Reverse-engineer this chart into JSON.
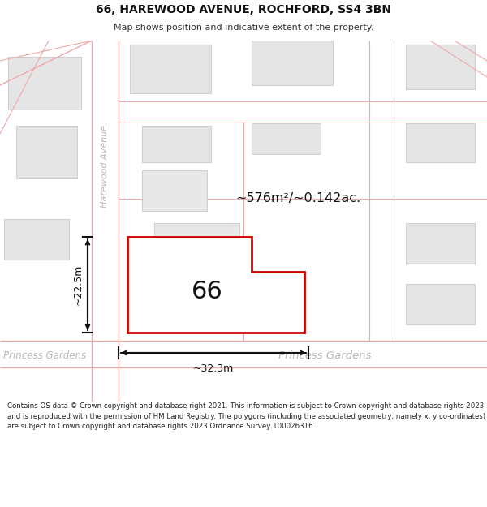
{
  "title_line1": "66, HAREWOOD AVENUE, ROCHFORD, SS4 3BN",
  "title_line2": "Map shows position and indicative extent of the property.",
  "footer_text": "Contains OS data © Crown copyright and database right 2021. This information is subject to Crown copyright and database rights 2023 and is reproduced with the permission of HM Land Registry. The polygons (including the associated geometry, namely x, y co-ordinates) are subject to Crown copyright and database rights 2023 Ordnance Survey 100026316.",
  "area_label": "~576m²/~0.142ac.",
  "plot_number": "66",
  "dim_width": "~32.3m",
  "dim_height": "~22.5m",
  "road_label_princess_right": "Princess Gardens",
  "road_label_princess_left": "Princess Gardens",
  "road_label_harewood": "Harewood Avenue",
  "bg_color": "#ffffff",
  "road_line_color": "#f0a8a8",
  "road_fill_color": "#ffffff",
  "map_bg_color": "#f5f5f5",
  "block_fill": "#e5e5e5",
  "block_edge": "#d0d0d0",
  "highlight_fill": "#ffffff",
  "highlight_stroke": "#cc0000",
  "street_label_color": "#b8b8b8",
  "dim_color": "#111111",
  "area_color": "#111111",
  "num_color": "#111111",
  "title_bold_color": "#111111",
  "footer_color": "#222222"
}
